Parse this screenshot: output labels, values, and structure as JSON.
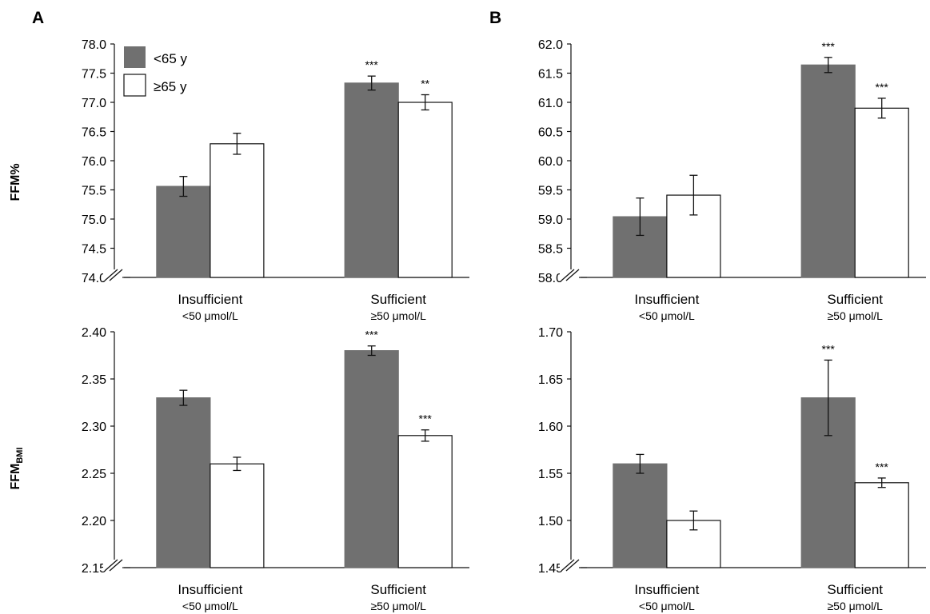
{
  "figure": {
    "panel_letters": [
      "A",
      "B"
    ],
    "row_labels": {
      "top": "FFM%",
      "bottom_main": "FFM",
      "bottom_sub": "BMI"
    },
    "legend": [
      {
        "label": "<65 y",
        "color": "#707070"
      },
      {
        "label": "≥65 y",
        "color": "#ffffff"
      }
    ]
  },
  "chart_data": [
    {
      "id": "A-top",
      "type": "bar",
      "panel": "A",
      "ylabel": "FFM%",
      "ylim": [
        74.0,
        78.0
      ],
      "yticks": [
        "74.0",
        "74.5",
        "75.0",
        "75.5",
        "76.0",
        "76.5",
        "77.0",
        "77.5",
        "78.0"
      ],
      "axis_break": true,
      "categories": [
        "Insufficient",
        "Sufficient"
      ],
      "category_sublabels": [
        "<50 μmol/L",
        "≥50 μmol/L"
      ],
      "series": [
        {
          "name": "<65 y",
          "color": "#707070",
          "values": [
            75.56,
            77.33
          ],
          "errors": [
            0.17,
            0.12
          ],
          "annotations": [
            "",
            "***"
          ]
        },
        {
          "name": "≥65 y",
          "color": "#ffffff",
          "values": [
            76.29,
            77.0
          ],
          "errors": [
            0.18,
            0.13
          ],
          "annotations": [
            "",
            "**"
          ]
        }
      ]
    },
    {
      "id": "B-top",
      "type": "bar",
      "panel": "B",
      "ylim": [
        58.0,
        62.0
      ],
      "yticks": [
        "58.0",
        "58.5",
        "59.0",
        "59.5",
        "60.0",
        "60.5",
        "61.0",
        "61.5",
        "62.0"
      ],
      "axis_break": true,
      "categories": [
        "Insufficient",
        "Sufficient"
      ],
      "category_sublabels": [
        "<50 μmol/L",
        "≥50 μmol/L"
      ],
      "series": [
        {
          "name": "<65 y",
          "color": "#707070",
          "values": [
            59.04,
            61.64
          ],
          "errors": [
            0.32,
            0.13
          ],
          "annotations": [
            "",
            "***"
          ]
        },
        {
          "name": "≥65 y",
          "color": "#ffffff",
          "values": [
            59.41,
            60.9
          ],
          "errors": [
            0.34,
            0.17
          ],
          "annotations": [
            "",
            "***"
          ]
        }
      ]
    },
    {
      "id": "A-bottom",
      "type": "bar",
      "panel": "A",
      "ylabel": "FFMBMI",
      "ylim": [
        2.15,
        2.4
      ],
      "yticks": [
        "2.15",
        "2.20",
        "2.25",
        "2.30",
        "2.35",
        "2.40"
      ],
      "axis_break": true,
      "categories": [
        "Insufficient",
        "Sufficient"
      ],
      "category_sublabels": [
        "<50 μmol/L",
        "≥50 μmol/L"
      ],
      "series": [
        {
          "name": "<65 y",
          "color": "#707070",
          "values": [
            2.33,
            2.38
          ],
          "errors": [
            0.008,
            0.005
          ],
          "annotations": [
            "",
            "***"
          ]
        },
        {
          "name": "≥65 y",
          "color": "#ffffff",
          "values": [
            2.26,
            2.29
          ],
          "errors": [
            0.007,
            0.006
          ],
          "annotations": [
            "",
            "***"
          ]
        }
      ]
    },
    {
      "id": "B-bottom",
      "type": "bar",
      "panel": "B",
      "ylim": [
        1.45,
        1.7
      ],
      "yticks": [
        "1.45",
        "1.50",
        "1.55",
        "1.60",
        "1.65",
        "1.70"
      ],
      "axis_break": true,
      "categories": [
        "Insufficient",
        "Sufficient"
      ],
      "category_sublabels": [
        "<50 μmol/L",
        "≥50 μmol/L"
      ],
      "series": [
        {
          "name": "<65 y",
          "color": "#707070",
          "values": [
            1.56,
            1.63
          ],
          "errors": [
            0.01,
            0.04
          ],
          "annotations": [
            "",
            "***"
          ]
        },
        {
          "name": "≥65 y",
          "color": "#ffffff",
          "values": [
            1.5,
            1.54
          ],
          "errors": [
            0.01,
            0.005
          ],
          "annotations": [
            "",
            "***"
          ]
        }
      ]
    }
  ]
}
